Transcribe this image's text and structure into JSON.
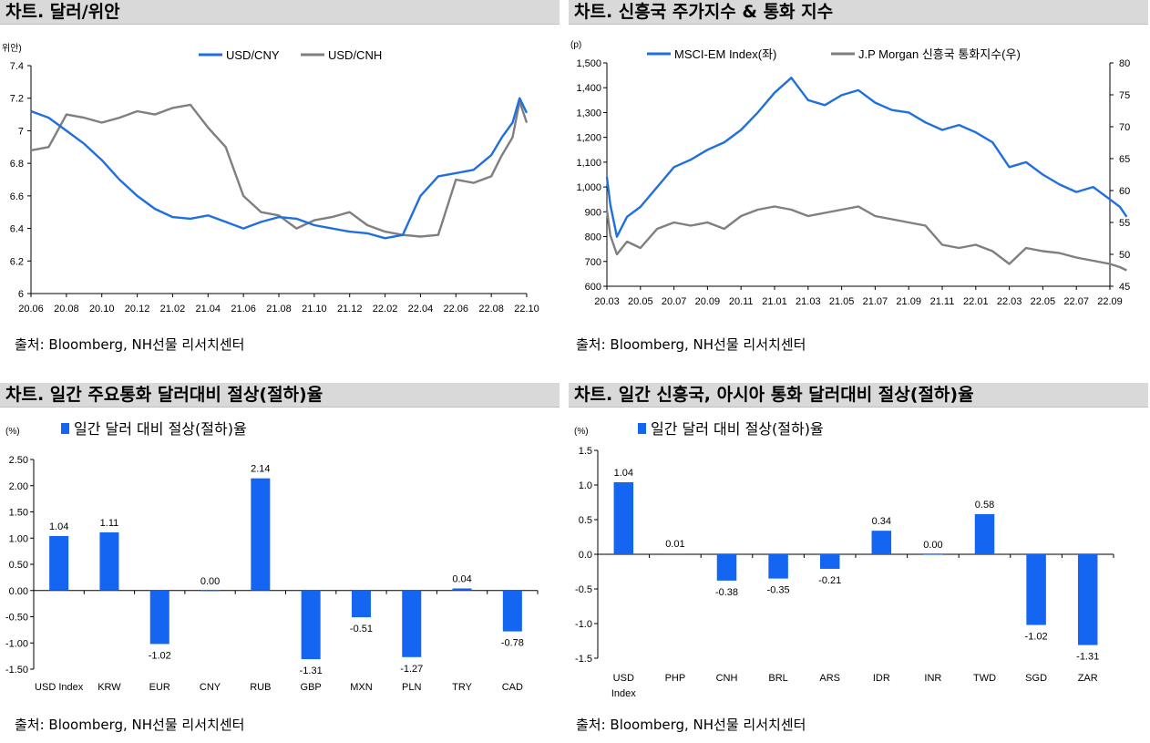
{
  "panels": {
    "p1": {
      "title": "차트. 달러/위안",
      "source": "출처: Bloomberg, NH선물 리서치센터"
    },
    "p2": {
      "title": "차트. 신흥국 주가지수 & 통화 지수",
      "source": "출처: Bloomberg, NH선물 리서치센터"
    },
    "p3": {
      "title": "차트. 일간 주요통화 달러대비 절상(절하)율",
      "source": "출처: Bloomberg, NH선물 리서치센터"
    },
    "p4": {
      "title": "차트. 일간 신흥국, 아시아 통화 달러대비 절상(절하)율",
      "source": "출처: Bloomberg, NH선물 리서치센터"
    }
  },
  "colors": {
    "blue": "#1f6fe0",
    "gray": "#7f7f7f",
    "bar": "#1466f2"
  },
  "chart_data": [
    {
      "type": "line",
      "title": "차트. 달러/위안",
      "unit": "위안)",
      "ylim": [
        6,
        7.4
      ],
      "yticks": [
        "7.4",
        "7.2",
        "7",
        "6.8",
        "6.6",
        "6.4",
        "6.2",
        "6"
      ],
      "ytick_values": [
        7.4,
        7.2,
        7.0,
        6.8,
        6.6,
        6.4,
        6.2,
        6.0
      ],
      "xticks": [
        "20.06",
        "20.08",
        "20.10",
        "20.12",
        "21.02",
        "21.04",
        "21.06",
        "21.08",
        "21.10",
        "21.12",
        "22.02",
        "22.04",
        "22.06",
        "22.08",
        "22.10"
      ],
      "series": [
        {
          "name": "USD/CNY",
          "color": "#1f6fe0",
          "x": [
            0,
            0.5,
            1,
            1.5,
            2,
            2.5,
            3,
            3.5,
            4,
            4.5,
            5,
            5.5,
            6,
            6.5,
            7,
            7.5,
            8,
            8.5,
            9,
            9.5,
            10,
            10.5,
            11,
            11.5,
            12,
            12.5,
            13,
            13.3,
            13.6,
            13.8,
            14
          ],
          "y": [
            7.12,
            7.08,
            7.0,
            6.92,
            6.82,
            6.7,
            6.6,
            6.52,
            6.47,
            6.46,
            6.48,
            6.44,
            6.4,
            6.44,
            6.47,
            6.46,
            6.42,
            6.4,
            6.38,
            6.37,
            6.34,
            6.36,
            6.6,
            6.72,
            6.74,
            6.76,
            6.85,
            6.96,
            7.05,
            7.2,
            7.11
          ]
        },
        {
          "name": "USD/CNH",
          "color": "#7f7f7f",
          "x": [
            0,
            0.5,
            1,
            1.5,
            2,
            2.5,
            3,
            3.5,
            4,
            4.5,
            5,
            5.5,
            6,
            6.5,
            7,
            7.5,
            8,
            8.5,
            9,
            9.5,
            10,
            10.5,
            11,
            11.5,
            12,
            12.5,
            13,
            13.3,
            13.6,
            13.8,
            14
          ],
          "y": [
            6.88,
            6.9,
            7.1,
            7.08,
            7.05,
            7.08,
            7.12,
            7.1,
            7.14,
            7.16,
            7.02,
            6.9,
            6.6,
            6.5,
            6.48,
            6.4,
            6.45,
            6.47,
            6.5,
            6.42,
            6.38,
            6.36,
            6.35,
            6.36,
            6.7,
            6.68,
            6.72,
            6.85,
            6.96,
            7.18,
            7.05
          ]
        }
      ]
    },
    {
      "type": "line",
      "title": "차트. 신흥국 주가지수 & 통화 지수",
      "unit_left": "(p)",
      "ylim": [
        600,
        1500
      ],
      "y2lim": [
        45,
        80
      ],
      "yticks": [
        "1,500",
        "1,400",
        "1,300",
        "1,200",
        "1,100",
        "1,000",
        "900",
        "800",
        "700",
        "600"
      ],
      "ytick_values": [
        1500,
        1400,
        1300,
        1200,
        1100,
        1000,
        900,
        800,
        700,
        600
      ],
      "y2ticks": [
        "80",
        "75",
        "70",
        "65",
        "60",
        "55",
        "50",
        "45"
      ],
      "y2tick_values": [
        80,
        75,
        70,
        65,
        60,
        55,
        50,
        45
      ],
      "xticks": [
        "20.03",
        "20.05",
        "20.07",
        "20.09",
        "20.11",
        "21.01",
        "21.03",
        "21.05",
        "21.07",
        "21.09",
        "21.11",
        "22.01",
        "22.03",
        "22.05",
        "22.07",
        "22.09"
      ],
      "series": [
        {
          "name": "MSCI-EM Index(좌)",
          "color": "#1f6fe0",
          "axis": "left",
          "x": [
            0,
            0.1,
            0.3,
            0.6,
            1,
            1.5,
            2,
            2.5,
            3,
            3.5,
            4,
            4.5,
            5,
            5.5,
            6,
            6.5,
            7,
            7.5,
            8,
            8.5,
            9,
            9.5,
            10,
            10.5,
            11,
            11.5,
            12,
            12.5,
            13,
            13.5,
            14,
            14.5,
            15,
            15.3,
            15.5
          ],
          "y": [
            1040,
            930,
            800,
            880,
            920,
            1000,
            1080,
            1110,
            1150,
            1180,
            1230,
            1300,
            1380,
            1440,
            1350,
            1330,
            1370,
            1390,
            1340,
            1310,
            1300,
            1260,
            1230,
            1250,
            1220,
            1180,
            1080,
            1100,
            1050,
            1010,
            980,
            1000,
            950,
            920,
            880
          ]
        },
        {
          "name": "J.P Morgan 신흥국 통화지수(우)",
          "color": "#7f7f7f",
          "axis": "right",
          "x": [
            0,
            0.1,
            0.3,
            0.6,
            1,
            1.5,
            2,
            2.5,
            3,
            3.5,
            4,
            4.5,
            5,
            5.5,
            6,
            6.5,
            7,
            7.5,
            8,
            8.5,
            9,
            9.5,
            10,
            10.5,
            11,
            11.5,
            12,
            12.5,
            13,
            13.5,
            14,
            14.5,
            15,
            15.3,
            15.5
          ],
          "y": [
            57,
            53,
            50,
            52,
            51,
            54,
            55,
            54.5,
            55,
            54,
            56,
            57,
            57.5,
            57,
            56,
            56.5,
            57,
            57.5,
            56,
            55.5,
            55,
            54.5,
            51.5,
            51,
            51.5,
            50.5,
            48.5,
            51,
            50.5,
            50.2,
            49.5,
            49,
            48.5,
            48,
            47.5
          ]
        }
      ]
    },
    {
      "type": "bar",
      "title": "차트. 일간 주요통화 달러대비 절상(절하)율",
      "unit": "(%)",
      "series_name": "일간 달러 대비 절상(절하)율",
      "ylim": [
        -1.5,
        2.5
      ],
      "yticks": [
        "2.50",
        "2.00",
        "1.50",
        "1.00",
        "0.50",
        "0.00",
        "-0.50",
        "-1.00",
        "-1.50"
      ],
      "ytick_values": [
        2.5,
        2.0,
        1.5,
        1.0,
        0.5,
        0.0,
        -0.5,
        -1.0,
        -1.5
      ],
      "categories": [
        "USD Index",
        "KRW",
        "EUR",
        "CNY",
        "RUB",
        "GBP",
        "MXN",
        "PLN",
        "TRY",
        "CAD"
      ],
      "values": [
        1.04,
        1.11,
        -1.02,
        0.0,
        2.14,
        -1.31,
        -0.51,
        -1.27,
        0.04,
        -0.78
      ],
      "labels": [
        "1.04",
        "1.11",
        "-1.02",
        "0.00",
        "2.14",
        "-1.31",
        "-0.51",
        "-1.27",
        "0.04",
        "-0.78"
      ]
    },
    {
      "type": "bar",
      "title": "차트. 일간 신흥국, 아시아 통화 달러대비 절상(절하)율",
      "unit": "(%)",
      "series_name": "일간 달러 대비 절상(절하)율",
      "ylim": [
        -1.5,
        1.5
      ],
      "yticks": [
        "1.5",
        "1.0",
        "0.5",
        "0.0",
        "-0.5",
        "-1.0",
        "-1.5"
      ],
      "ytick_values": [
        1.5,
        1.0,
        0.5,
        0.0,
        -0.5,
        -1.0,
        -1.5
      ],
      "categories": [
        "USD",
        "PHP",
        "CNH",
        "BRL",
        "ARS",
        "IDR",
        "INR",
        "TWD",
        "SGD",
        "ZAR"
      ],
      "category_sub": [
        "Index",
        "",
        "",
        "",
        "",
        "",
        "",
        "",
        "",
        ""
      ],
      "values": [
        1.04,
        0.01,
        -0.38,
        -0.35,
        -0.21,
        0.34,
        0.0,
        0.58,
        -1.02,
        -1.31
      ],
      "labels": [
        "1.04",
        "0.01",
        "-0.38",
        "-0.35",
        "-0.21",
        "0.34",
        "0.00",
        "0.58",
        "-1.02",
        "-1.31"
      ]
    }
  ]
}
